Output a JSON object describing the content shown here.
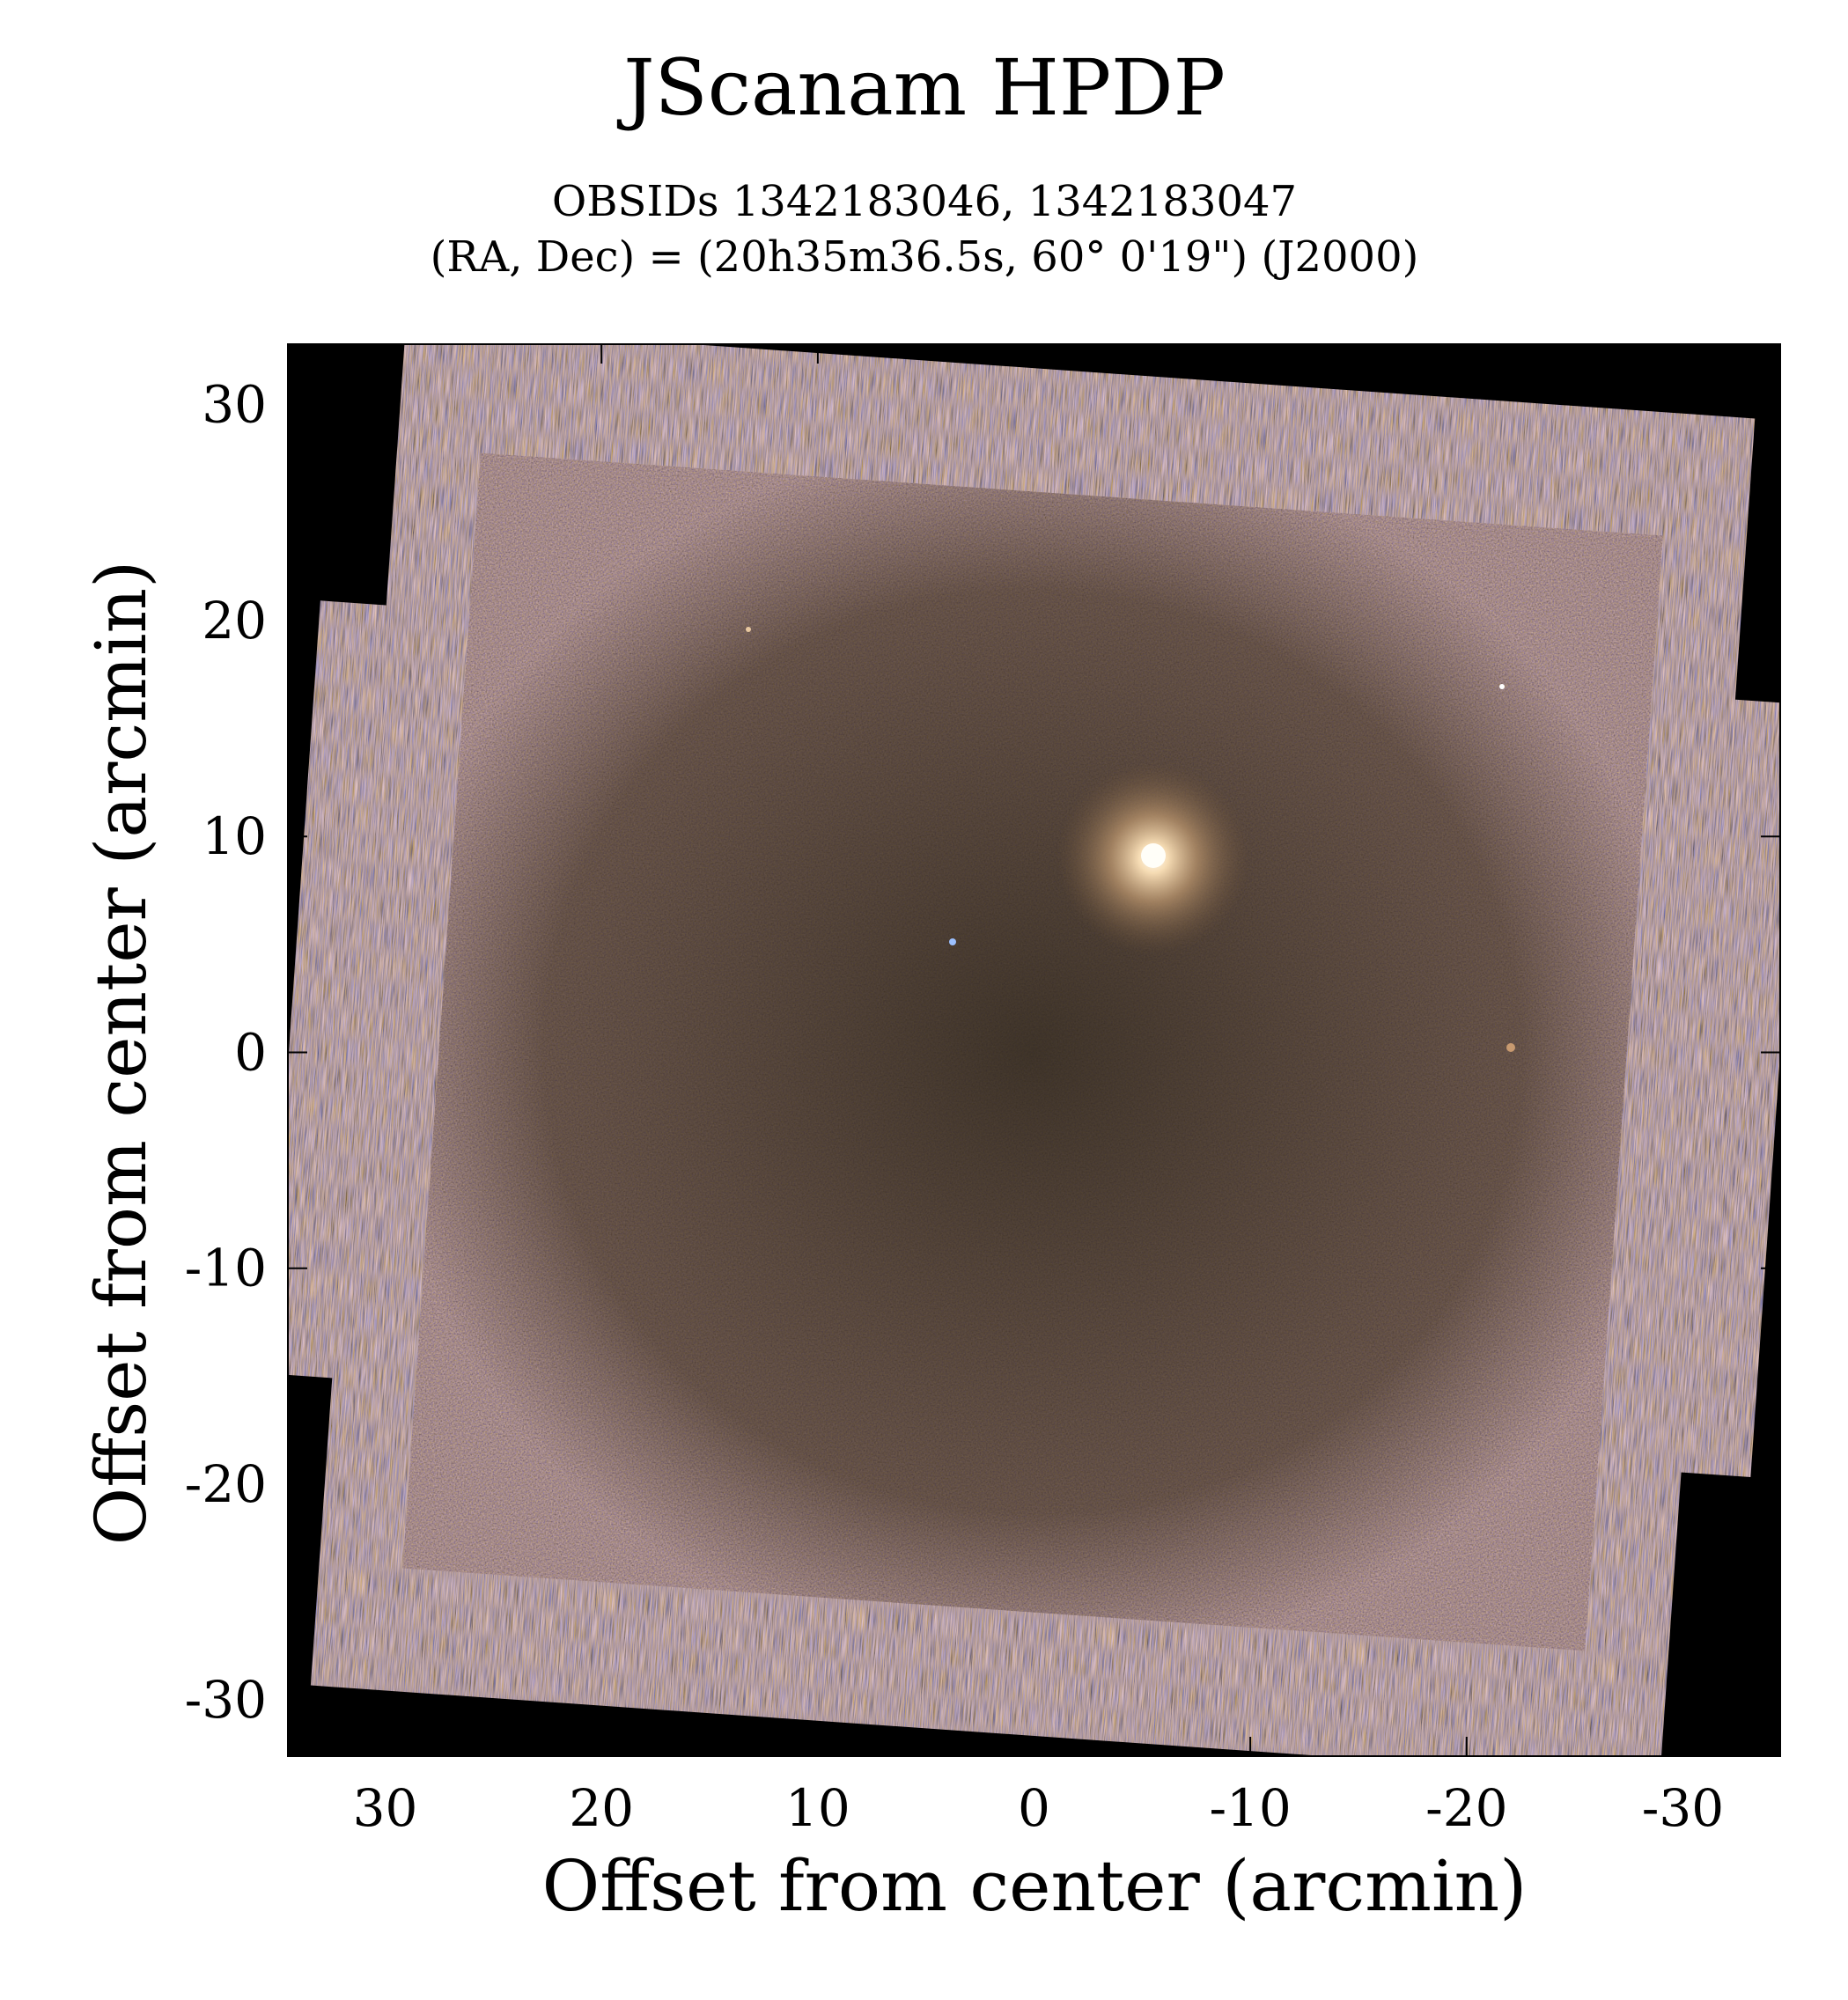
{
  "chart_data": {
    "type": "image",
    "title": "JScanam HPDP",
    "subtitle": [
      "OBSIDs 1342183046, 1342183047",
      "(RA, Dec) = (20h35m36.5s, 60° 0'19\") (J2000)"
    ],
    "xlabel": "Offset from center (arcmin)",
    "ylabel": "Offset from center (arcmin)",
    "xlim": [
      34.5,
      -34.5
    ],
    "ylim": [
      -32.6,
      32.8
    ],
    "xticks": [
      30,
      20,
      10,
      0,
      -10,
      -20,
      -30
    ],
    "yticks": [
      -30,
      -20,
      -10,
      0,
      10,
      20,
      30
    ]
  }
}
